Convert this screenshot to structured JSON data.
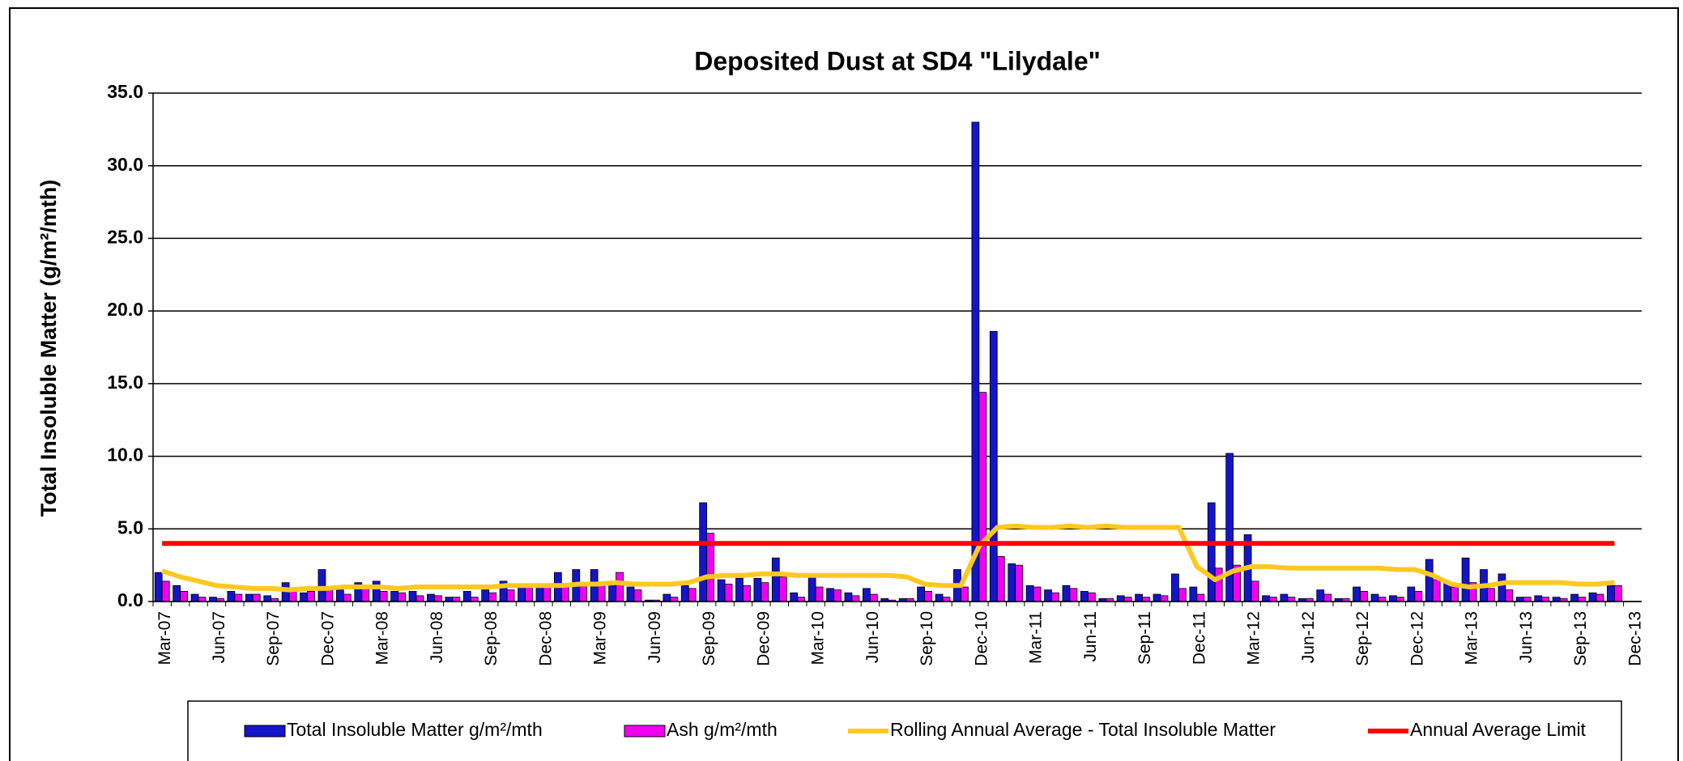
{
  "chart_data": {
    "type": "bar",
    "title": "Deposited Dust at SD4 \"Lilydale\"",
    "y_label": "Total Insoluble Matter  (g/m²/mth)",
    "categories": [
      "Mar-07",
      null,
      null,
      "Jun-07",
      null,
      null,
      "Sep-07",
      null,
      null,
      "Dec-07",
      null,
      null,
      "Mar-08",
      null,
      null,
      "Jun-08",
      null,
      null,
      "Sep-08",
      null,
      null,
      "Dec-08",
      null,
      null,
      "Mar-09",
      null,
      null,
      "Jun-09",
      null,
      null,
      "Sep-09",
      null,
      null,
      "Dec-09",
      null,
      null,
      "Mar-10",
      null,
      null,
      "Jun-10",
      null,
      null,
      "Sep-10",
      null,
      null,
      "Dec-10",
      null,
      null,
      "Mar-11",
      null,
      null,
      "Jun-11",
      null,
      null,
      "Sep-11",
      null,
      null,
      "Dec-11",
      null,
      null,
      "Mar-12",
      null,
      null,
      "Jun-12",
      null,
      null,
      "Sep-12",
      null,
      null,
      "Dec-12",
      null,
      null,
      "Mar-13",
      null,
      null,
      "Jun-13",
      null,
      null,
      "Sep-13",
      null,
      null,
      "Dec-13"
    ],
    "series": [
      {
        "name": "Total Insoluble Matter  g/m²/mth",
        "type": "bar",
        "color": "#1414c8",
        "values": [
          2.0,
          1.1,
          0.5,
          0.3,
          0.7,
          0.5,
          0.4,
          1.3,
          0.6,
          2.2,
          0.8,
          1.3,
          1.4,
          0.7,
          0.7,
          0.5,
          0.3,
          0.7,
          0.8,
          1.4,
          1.2,
          1.2,
          2.0,
          2.2,
          2.2,
          1.2,
          1.0,
          0.1,
          0.5,
          1.1,
          6.8,
          1.5,
          1.6,
          1.6,
          3.0,
          0.6,
          1.9,
          0.9,
          0.6,
          0.9,
          0.2,
          0.2,
          1.0,
          0.5,
          2.2,
          33.0,
          18.6,
          2.6,
          1.1,
          0.8,
          1.1,
          0.7,
          0.2,
          0.4,
          0.5,
          0.5,
          1.9,
          1.0,
          6.8,
          10.2,
          4.6,
          0.4,
          0.5,
          0.2,
          0.8,
          0.2,
          1.0,
          0.5,
          0.4,
          1.0,
          2.9,
          1.3,
          3.0,
          2.2,
          1.9,
          0.3,
          0.4,
          0.3,
          0.5,
          0.6,
          1.1,
          null
        ]
      },
      {
        "name": "Ash  g/m²/mth",
        "type": "bar",
        "color": "#f000f0",
        "values": [
          1.4,
          0.7,
          0.3,
          0.2,
          0.5,
          0.5,
          0.2,
          0.8,
          0.7,
          0.8,
          0.5,
          0.9,
          0.7,
          0.6,
          0.4,
          0.4,
          0.3,
          0.3,
          0.6,
          0.8,
          1.0,
          1.0,
          1.2,
          1.2,
          1.3,
          2.0,
          0.8,
          0.1,
          0.3,
          0.9,
          4.7,
          1.2,
          1.1,
          1.3,
          1.7,
          0.3,
          1.0,
          0.8,
          0.4,
          0.5,
          0.1,
          0.2,
          0.7,
          0.3,
          1.0,
          14.4,
          3.1,
          2.5,
          1.0,
          0.6,
          0.9,
          0.6,
          0.2,
          0.3,
          0.3,
          0.4,
          0.9,
          0.5,
          2.3,
          2.5,
          1.4,
          0.3,
          0.3,
          0.2,
          0.5,
          0.2,
          0.7,
          0.3,
          0.3,
          0.7,
          1.5,
          1.0,
          1.3,
          0.9,
          0.8,
          0.3,
          0.3,
          0.2,
          0.3,
          0.5,
          1.1,
          null
        ]
      },
      {
        "name": "Rolling Annual Average - Total Insoluble Matter",
        "type": "line",
        "color": "#ffc820",
        "values": [
          2.1,
          1.7,
          1.4,
          1.1,
          1.0,
          0.9,
          0.9,
          0.8,
          0.9,
          0.9,
          1.0,
          1.0,
          1.0,
          0.9,
          1.0,
          1.0,
          1.0,
          1.0,
          1.0,
          1.1,
          1.1,
          1.1,
          1.1,
          1.2,
          1.2,
          1.3,
          1.2,
          1.2,
          1.2,
          1.3,
          1.7,
          1.8,
          1.8,
          1.9,
          1.9,
          1.8,
          1.8,
          1.8,
          1.8,
          1.8,
          1.8,
          1.7,
          1.2,
          1.1,
          1.1,
          3.8,
          5.1,
          5.2,
          5.1,
          5.1,
          5.2,
          5.1,
          5.2,
          5.1,
          5.1,
          5.1,
          5.1,
          2.4,
          1.5,
          2.1,
          2.4,
          2.4,
          2.3,
          2.3,
          2.3,
          2.3,
          2.3,
          2.3,
          2.2,
          2.2,
          1.8,
          1.2,
          1.0,
          1.1,
          1.3,
          1.3,
          1.3,
          1.3,
          1.2,
          1.2,
          1.3,
          null
        ]
      },
      {
        "name": "Annual Average Limit",
        "type": "line",
        "color": "#ff0000",
        "values": [
          4,
          4,
          4,
          4,
          4,
          4,
          4,
          4,
          4,
          4,
          4,
          4,
          4,
          4,
          4,
          4,
          4,
          4,
          4,
          4,
          4,
          4,
          4,
          4,
          4,
          4,
          4,
          4,
          4,
          4,
          4,
          4,
          4,
          4,
          4,
          4,
          4,
          4,
          4,
          4,
          4,
          4,
          4,
          4,
          4,
          4,
          4,
          4,
          4,
          4,
          4,
          4,
          4,
          4,
          4,
          4,
          4,
          4,
          4,
          4,
          4,
          4,
          4,
          4,
          4,
          4,
          4,
          4,
          4,
          4,
          4,
          4,
          4,
          4,
          4,
          4,
          4,
          4,
          4,
          4,
          4,
          null
        ]
      }
    ],
    "ylim": [
      0,
      35
    ],
    "yticks": [
      {
        "value": 0,
        "label": "0.0"
      },
      {
        "value": 5,
        "label": "5.0"
      },
      {
        "value": 10,
        "label": "10.0"
      },
      {
        "value": 15,
        "label": "15.0"
      },
      {
        "value": 20,
        "label": "20.0"
      },
      {
        "value": 25,
        "label": "25.0"
      },
      {
        "value": 30,
        "label": "30.0"
      },
      {
        "value": 35,
        "label": "35.0"
      }
    ],
    "grid": true,
    "legend": "bottom"
  }
}
